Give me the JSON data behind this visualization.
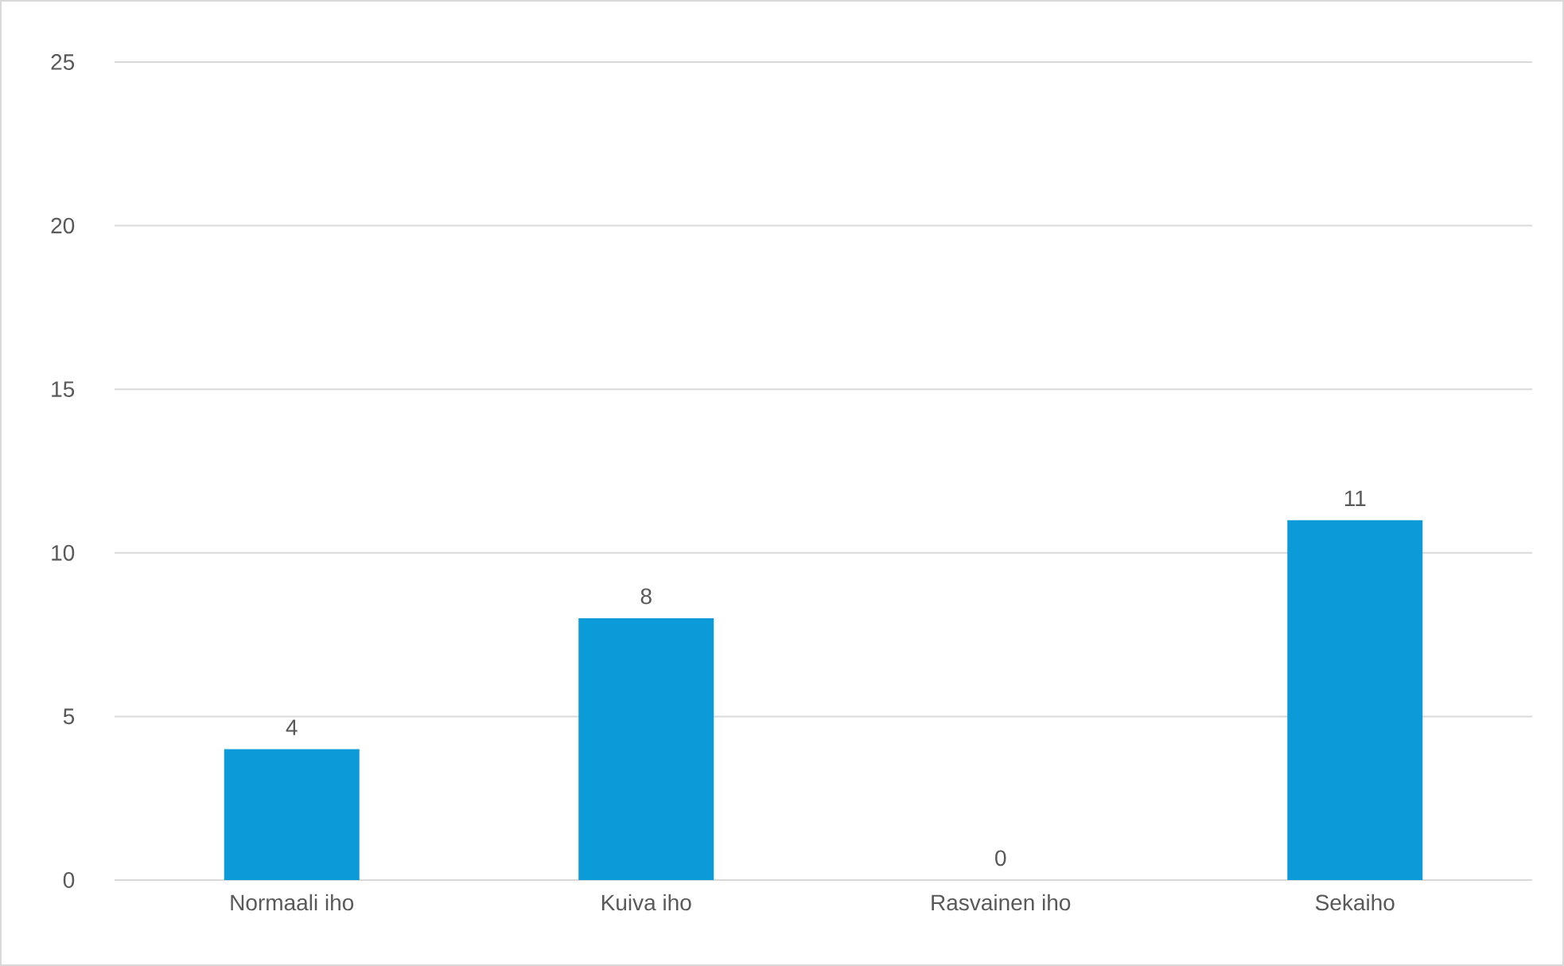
{
  "chart_data": {
    "type": "bar",
    "categories": [
      "Normaali iho",
      "Kuiva iho",
      "Rasvainen iho",
      "Sekaiho"
    ],
    "values": [
      4,
      8,
      0,
      11
    ],
    "color": "#0c9bd9",
    "ylim": [
      0,
      25
    ],
    "yticks": [
      0,
      5,
      10,
      15,
      20,
      25
    ],
    "grid": "y",
    "data_labels": true
  }
}
